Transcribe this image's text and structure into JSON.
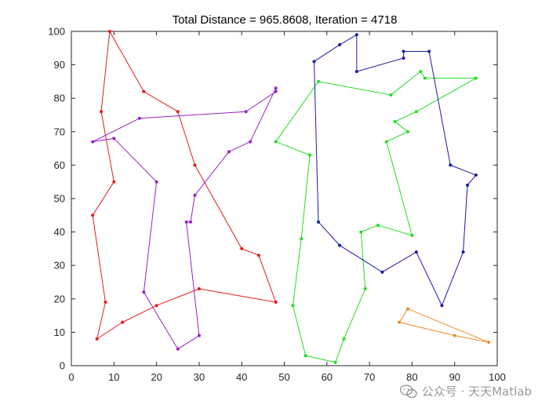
{
  "chart_data": {
    "type": "line",
    "title": "Total Distance = 965.8608, Iteration = 4718",
    "xlabel": "",
    "ylabel": "",
    "xlim": [
      0,
      100
    ],
    "ylim": [
      0,
      100
    ],
    "x_ticks": [
      "0",
      "10",
      "20",
      "30",
      "40",
      "50",
      "60",
      "70",
      "80",
      "90",
      "100"
    ],
    "y_ticks": [
      "0",
      "10",
      "20",
      "30",
      "40",
      "50",
      "60",
      "70",
      "80",
      "90",
      "100"
    ],
    "grid": false,
    "series": [
      {
        "color": "#e41a1c",
        "points": [
          [
            9,
            100
          ],
          [
            17,
            82
          ],
          [
            25,
            76
          ],
          [
            29,
            60
          ],
          [
            40,
            35
          ],
          [
            44,
            33
          ],
          [
            48,
            19
          ],
          [
            30,
            23
          ],
          [
            20,
            18
          ],
          [
            12,
            13
          ],
          [
            6,
            8
          ],
          [
            8,
            19
          ],
          [
            5,
            45
          ],
          [
            10,
            55
          ],
          [
            7,
            76
          ],
          [
            9,
            100
          ]
        ]
      },
      {
        "color": "#9b1fc8",
        "points": [
          [
            5,
            67
          ],
          [
            10,
            68
          ],
          [
            20,
            55
          ],
          [
            17,
            22
          ],
          [
            25,
            5
          ],
          [
            30,
            9
          ],
          [
            27,
            43
          ],
          [
            28,
            43
          ],
          [
            29,
            51
          ],
          [
            37,
            64
          ],
          [
            42,
            67
          ],
          [
            48,
            83
          ],
          [
            48,
            82
          ],
          [
            41,
            76
          ],
          [
            16,
            74
          ],
          [
            5,
            67
          ]
        ]
      },
      {
        "color": "#22dd22",
        "points": [
          [
            48,
            67
          ],
          [
            56,
            63
          ],
          [
            54,
            38
          ],
          [
            52,
            18
          ],
          [
            55,
            3
          ],
          [
            62,
            1
          ],
          [
            64,
            8
          ],
          [
            69,
            23
          ],
          [
            68,
            40
          ],
          [
            72,
            42
          ],
          [
            80,
            39
          ],
          [
            74,
            67
          ],
          [
            79,
            70
          ],
          [
            76,
            73
          ],
          [
            81,
            76
          ],
          [
            95,
            86
          ],
          [
            83,
            86
          ],
          [
            82,
            88
          ],
          [
            75,
            81
          ],
          [
            58,
            85
          ],
          [
            48,
            67
          ]
        ]
      },
      {
        "color": "#1a1aa6",
        "points": [
          [
            57,
            91
          ],
          [
            63,
            96
          ],
          [
            67,
            99
          ],
          [
            67,
            88
          ],
          [
            78,
            92
          ],
          [
            78,
            94
          ],
          [
            84,
            94
          ],
          [
            89,
            60
          ],
          [
            95,
            57
          ],
          [
            93,
            54
          ],
          [
            92,
            34
          ],
          [
            87,
            18
          ],
          [
            81,
            34
          ],
          [
            73,
            28
          ],
          [
            63,
            36
          ],
          [
            58,
            43
          ],
          [
            57,
            91
          ]
        ]
      },
      {
        "color": "#ee8a22",
        "points": [
          [
            77,
            13
          ],
          [
            79,
            17
          ],
          [
            98,
            7
          ],
          [
            90,
            9
          ],
          [
            77,
            13
          ]
        ]
      }
    ]
  },
  "watermark": {
    "icon": "wechat-icon",
    "text": "公众号 · 天天Matlab"
  }
}
